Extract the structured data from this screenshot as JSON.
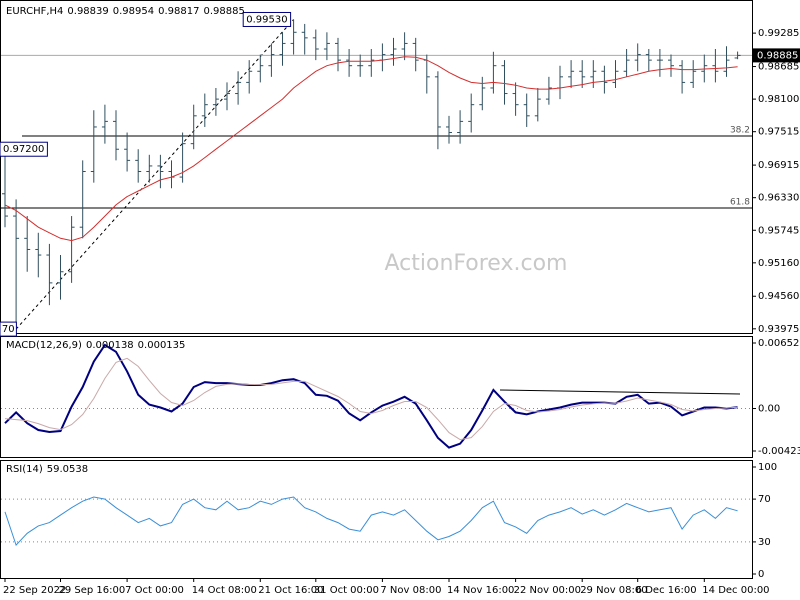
{
  "chart_data": [
    {
      "type": "ohlc",
      "title": "EURCHF,H4",
      "watermark": "ActionForex.com",
      "color": "#2f4f5f",
      "grid": false,
      "categories": [
        "22 Sep 2022",
        null,
        null,
        null,
        null,
        "29 Sep 16:00",
        null,
        null,
        null,
        null,
        null,
        "7 Oct 00:00",
        null,
        null,
        null,
        null,
        null,
        "14 Oct 08:00",
        null,
        null,
        null,
        null,
        null,
        "21 Oct 16:00",
        null,
        null,
        null,
        null,
        "31 Oct 00:00",
        null,
        null,
        null,
        null,
        null,
        "7 Nov 08:00",
        null,
        null,
        null,
        null,
        null,
        "14 Nov 16:00",
        null,
        null,
        null,
        null,
        null,
        "22 Nov 00:00",
        null,
        null,
        null,
        null,
        null,
        "29 Nov 08:00",
        null,
        null,
        null,
        null,
        "6 Dec 16:00",
        null,
        null,
        null,
        null,
        null,
        "14 Dec 00:00",
        null,
        null,
        null
      ],
      "open": [
        0.964,
        0.96,
        0.956,
        0.954,
        0.953,
        0.948,
        0.95,
        0.958,
        0.968,
        0.976,
        0.977,
        0.972,
        0.97,
        0.968,
        0.969,
        0.968,
        0.967,
        0.973,
        0.978,
        0.98,
        0.981,
        0.982,
        0.984,
        0.986,
        0.987,
        0.989,
        0.991,
        0.993,
        0.992,
        0.99,
        0.991,
        0.988,
        0.987,
        0.987,
        0.988,
        0.989,
        0.99,
        0.991,
        0.988,
        0.985,
        0.976,
        0.975,
        0.977,
        0.98,
        0.983,
        0.987,
        0.982,
        0.98,
        0.978,
        0.981,
        0.983,
        0.985,
        0.986,
        0.985,
        0.986,
        0.984,
        0.986,
        0.988,
        0.989,
        0.988,
        0.988,
        0.987,
        0.984,
        0.986,
        0.987,
        0.986,
        0.98839
      ],
      "high": [
        0.972,
        0.963,
        0.96,
        0.957,
        0.955,
        0.953,
        0.96,
        0.97,
        0.979,
        0.98,
        0.979,
        0.975,
        0.972,
        0.971,
        0.971,
        0.97,
        0.975,
        0.98,
        0.982,
        0.983,
        0.984,
        0.986,
        0.988,
        0.989,
        0.991,
        0.993,
        0.9953,
        0.9945,
        0.9935,
        0.993,
        0.992,
        0.99,
        0.989,
        0.99,
        0.991,
        0.992,
        0.993,
        0.992,
        0.989,
        0.986,
        0.978,
        0.979,
        0.982,
        0.985,
        0.9895,
        0.988,
        0.984,
        0.982,
        0.983,
        0.985,
        0.987,
        0.988,
        0.988,
        0.988,
        0.987,
        0.988,
        0.99,
        0.991,
        0.99,
        0.99,
        0.989,
        0.988,
        0.988,
        0.989,
        0.99,
        0.9905,
        0.98954
      ],
      "low": [
        0.958,
        0.9397,
        0.95,
        0.949,
        0.944,
        0.945,
        0.948,
        0.956,
        0.966,
        0.973,
        0.97,
        0.968,
        0.966,
        0.966,
        0.965,
        0.965,
        0.966,
        0.972,
        0.976,
        0.978,
        0.979,
        0.98,
        0.982,
        0.984,
        0.985,
        0.987,
        0.989,
        0.989,
        0.988,
        0.988,
        0.986,
        0.985,
        0.985,
        0.985,
        0.986,
        0.987,
        0.988,
        0.986,
        0.982,
        0.972,
        0.973,
        0.973,
        0.975,
        0.979,
        0.982,
        0.98,
        0.978,
        0.976,
        0.977,
        0.98,
        0.981,
        0.983,
        0.983,
        0.983,
        0.982,
        0.983,
        0.985,
        0.986,
        0.986,
        0.985,
        0.985,
        0.982,
        0.983,
        0.984,
        0.984,
        0.985,
        0.98817
      ],
      "close": [
        0.96,
        0.956,
        0.954,
        0.953,
        0.948,
        0.95,
        0.958,
        0.968,
        0.976,
        0.977,
        0.972,
        0.97,
        0.968,
        0.969,
        0.968,
        0.967,
        0.973,
        0.978,
        0.98,
        0.981,
        0.982,
        0.984,
        0.986,
        0.987,
        0.989,
        0.991,
        0.993,
        0.992,
        0.99,
        0.991,
        0.988,
        0.987,
        0.987,
        0.988,
        0.989,
        0.99,
        0.991,
        0.988,
        0.985,
        0.976,
        0.975,
        0.977,
        0.98,
        0.983,
        0.987,
        0.982,
        0.98,
        0.978,
        0.981,
        0.983,
        0.985,
        0.986,
        0.985,
        0.986,
        0.984,
        0.986,
        0.988,
        0.989,
        0.988,
        0.988,
        0.987,
        0.984,
        0.986,
        0.987,
        0.986,
        0.988,
        0.98885
      ],
      "series": [
        {
          "color": "#d32f2f",
          "width": 1,
          "values": [
            0.962,
            0.961,
            0.9595,
            0.958,
            0.957,
            0.956,
            0.9556,
            0.9562,
            0.958,
            0.96,
            0.962,
            0.9635,
            0.9645,
            0.9655,
            0.9665,
            0.967,
            0.9678,
            0.969,
            0.9705,
            0.972,
            0.9735,
            0.975,
            0.9765,
            0.978,
            0.9795,
            0.981,
            0.983,
            0.9845,
            0.986,
            0.987,
            0.9875,
            0.9878,
            0.9878,
            0.9878,
            0.988,
            0.9883,
            0.9886,
            0.9885,
            0.988,
            0.987,
            0.9858,
            0.9848,
            0.984,
            0.9838,
            0.984,
            0.9838,
            0.9835,
            0.983,
            0.9828,
            0.9828,
            0.983,
            0.9833,
            0.9836,
            0.984,
            0.9842,
            0.9845,
            0.985,
            0.9855,
            0.986,
            0.9863,
            0.9865,
            0.9863,
            0.9863,
            0.9864,
            0.9865,
            0.9866,
            0.9868
          ]
        }
      ],
      "ylim": [
        0.939,
        0.9979
      ],
      "yticks": [
        0.99285,
        0.98685,
        {
          "value": 0.981,
          "label": "0.98100"
        },
        0.97515,
        0.96915,
        {
          "value": 0.9633,
          "label": "0.96330"
        },
        0.95745,
        {
          "value": 0.9516,
          "label": "0.95160"
        },
        {
          "value": 0.9456,
          "label": "0.94560"
        },
        0.93975
      ],
      "annotations": [
        {
          "value": 0.9953,
          "label": "0.99530"
        },
        {
          "value": 0.972,
          "label": "0.97200"
        },
        {
          "value": 0.9397,
          "label": "70"
        }
      ],
      "fib_levels": [
        {
          "level": 38.2,
          "price": 0.97437
        },
        {
          "level": 61.8,
          "price": 0.96145
        }
      ]
    },
    {
      "type": "line",
      "title": "MACD(12,26,9)",
      "grid": "dotted",
      "series": [
        {
          "color": "#000080",
          "width": 2,
          "values": [
            -0.001462,
            -0.00039,
            -0.001462,
            -0.002144,
            -0.002339,
            -0.002241,
            0.000195,
            0.002144,
            0.004677,
            0.006334,
            0.005652,
            0.003703,
            0.001364,
            0.00039,
            9.7e-05,
            -0.000292,
            0.000487,
            0.002144,
            0.002631,
            0.002534,
            0.002534,
            0.002436,
            0.002339,
            0.002339,
            0.002534,
            0.002826,
            0.002923,
            0.002534,
            0.001364,
            0.001267,
            0.00078,
            -0.000487,
            -0.001169,
            -0.00039,
            0.000292,
            0.000682,
            0.001169,
            0.000487,
            -0.001169,
            -0.002923,
            -0.003898,
            -0.003508,
            -0.002144,
            -0.000195,
            0.001851,
            0.000682,
            -0.00039,
            -0.000585,
            -0.000292,
            -9.7e-05,
            9.7e-05,
            0.00039,
            0.000585,
            0.000585,
            0.000585,
            0.000487,
            0.001169,
            0.001364,
            0.000487,
            0.000585,
            0.000195,
            -0.000682,
            -0.000292,
            9.7e-05,
            9.7e-05,
            0,
            0.000138
          ]
        },
        {
          "color": "#c9a9a9",
          "width": 1,
          "values": [
            -0.001,
            -0.0011,
            -0.0012,
            -0.0015,
            -0.0019,
            -0.0021,
            -0.0016,
            -0.0006,
            0.001,
            0.003,
            0.0046,
            0.005,
            0.0042,
            0.0028,
            0.0015,
            0.0006,
            0.0003,
            0.0008,
            0.0016,
            0.0022,
            0.0024,
            0.00245,
            0.0024,
            0.00238,
            0.0024,
            0.00255,
            0.0027,
            0.0027,
            0.0022,
            0.0017,
            0.0012,
            0.0005,
            -0.0003,
            -0.0005,
            -0.0002,
            0.0003,
            0.0007,
            0.0007,
            0.0001,
            -0.0011,
            -0.0024,
            -0.0031,
            -0.0029,
            -0.0018,
            -0.0003,
            0.0005,
            0.0003,
            -0.0002,
            -0.00035,
            -0.00025,
            -0.0001,
            0.00015,
            0.00035,
            0.00048,
            0.00055,
            0.00052,
            0.00075,
            0.00105,
            0.00085,
            0.00065,
            0.0004,
            -0.0001,
            -0.00025,
            -0.0001,
            0,
            5e-05,
            0.000135
          ]
        }
      ],
      "ylim": [
        -0.004233,
        0.006529
      ],
      "yticks": [
        0.006529,
        {
          "value": 0,
          "label": "0.00"
        },
        -0.004233
      ]
    },
    {
      "type": "line",
      "title": "RSI(14)",
      "grid": "dotted",
      "series": [
        {
          "color": "#3a8fd8",
          "width": 1,
          "values": [
            58,
            27,
            38,
            45,
            48,
            55,
            62,
            68,
            72,
            70,
            62,
            55,
            48,
            52,
            45,
            48,
            65,
            70,
            62,
            60,
            68,
            60,
            62,
            68,
            65,
            70,
            72,
            62,
            58,
            52,
            48,
            42,
            40,
            55,
            58,
            55,
            60,
            50,
            40,
            32,
            35,
            40,
            50,
            62,
            68,
            48,
            44,
            38,
            50,
            55,
            58,
            62,
            56,
            60,
            55,
            60,
            66,
            62,
            58,
            60,
            62,
            42,
            55,
            60,
            52,
            62,
            59.0538
          ]
        }
      ],
      "ylim": [
        0,
        100
      ],
      "yticks": [
        100,
        70,
        30,
        0
      ]
    }
  ]
}
